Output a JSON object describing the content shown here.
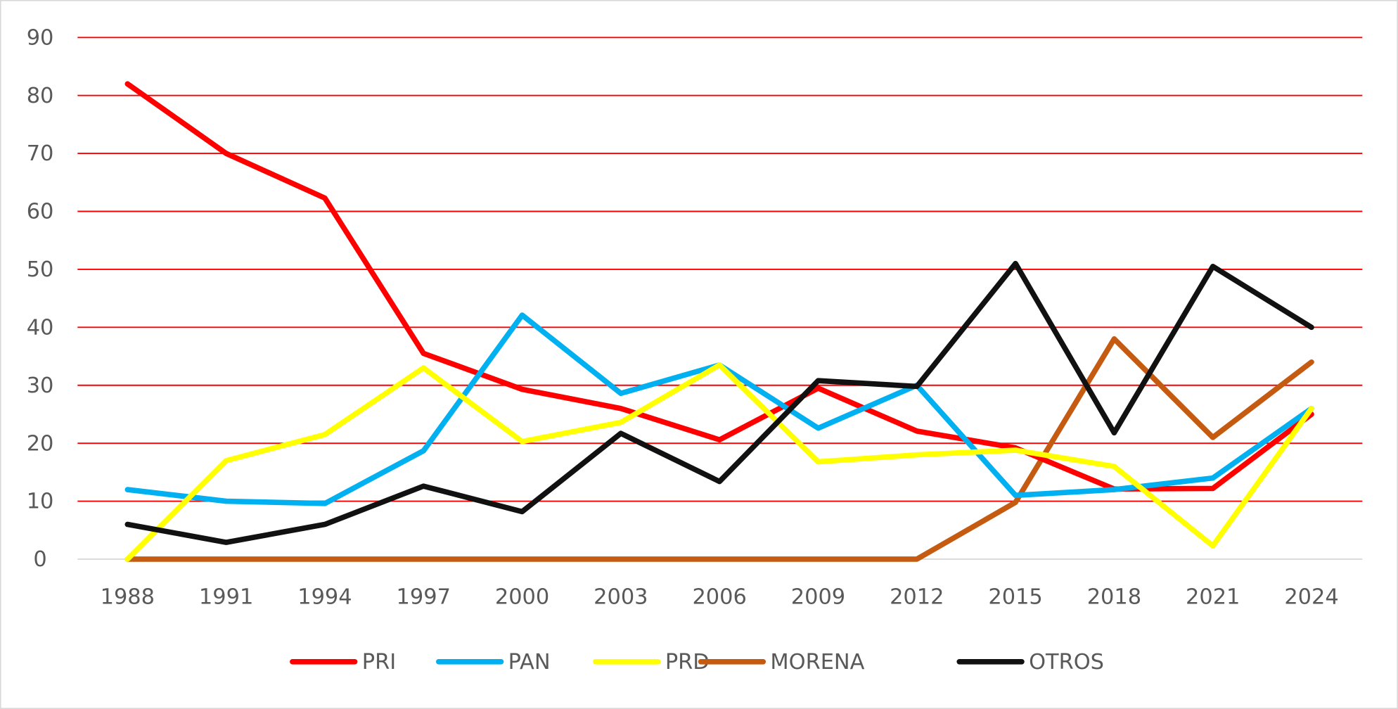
{
  "chart_data": {
    "type": "line",
    "title": "",
    "xlabel": "",
    "ylabel": "",
    "ylim": [
      0,
      90
    ],
    "yticks": [
      "0",
      "10",
      "20",
      "30",
      "40",
      "50",
      "60",
      "70",
      "80",
      "90"
    ],
    "categories": [
      "1988",
      "1991",
      "1994",
      "1997",
      "2000",
      "2003",
      "2006",
      "2009",
      "2012",
      "2015",
      "2018",
      "2021",
      "2024"
    ],
    "grid": true,
    "legend_position": "bottom",
    "gridline_color": "#FF0000",
    "series": [
      {
        "name": "PRI",
        "color": "#FF0000",
        "values": [
          82,
          70,
          62.3,
          35.5,
          29.3,
          26,
          20.6,
          29.5,
          22.1,
          19.2,
          12.1,
          12.2,
          25
        ]
      },
      {
        "name": "PAN",
        "color": "#00B0F0",
        "values": [
          12,
          10,
          9.6,
          18.7,
          42.1,
          28.6,
          33.5,
          22.6,
          30,
          11,
          12,
          14,
          26
        ]
      },
      {
        "name": "PRD",
        "color": "#FFFF00",
        "values": [
          0,
          17,
          21.5,
          33,
          20.3,
          23.6,
          33.5,
          16.8,
          18,
          18.8,
          16,
          2.3,
          26
        ]
      },
      {
        "name": "MORENA",
        "color": "#C55A11",
        "values": [
          0,
          0,
          0,
          0,
          0,
          0,
          0,
          0,
          0,
          9.8,
          38,
          21,
          34
        ]
      },
      {
        "name": "OTROS",
        "color": "#111111",
        "values": [
          6,
          2.9,
          6,
          12.6,
          8.2,
          21.7,
          13.4,
          30.8,
          29.8,
          51,
          21.8,
          50.5,
          40
        ]
      }
    ]
  }
}
